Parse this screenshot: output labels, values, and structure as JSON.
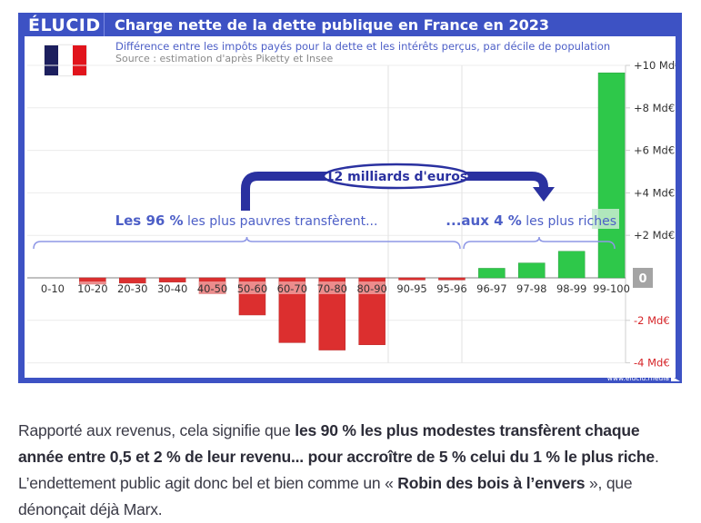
{
  "header": {
    "logo": "ÉLUCID",
    "title": "Charge nette de la dette publique en France en 2023",
    "subtitle": "Différence entre les impôts payés pour la dette et les intérêts perçus, par décile de population",
    "source": "Source : estimation d'après Piketty et Insee",
    "flag_colors": [
      "#1c1f5e",
      "#ffffff",
      "#e1141c"
    ]
  },
  "footer": {
    "url": "www.elucid.media"
  },
  "colors": {
    "frame": "#3d52c4",
    "negative": "#dc2f2f",
    "negative_light": "#f29a9a",
    "positive": "#2ec84a",
    "arrow": "#2a31a0",
    "annotation": "#4d5fc7",
    "brace": "#8e97e6",
    "grid": "#ececec",
    "axis_neg": "#d6262a"
  },
  "chart_data": {
    "type": "bar",
    "title": "Charge nette de la dette publique en France en 2023",
    "subtitle": "Différence entre les impôts payés pour la dette et les intérêts perçus, par décile de population",
    "xlabel": "",
    "ylabel": "",
    "ylim": [
      -4,
      10
    ],
    "yticks": [
      {
        "value": 10,
        "label": "+10 Md€"
      },
      {
        "value": 8,
        "label": "+8 Md€"
      },
      {
        "value": 6,
        "label": "+6 Md€"
      },
      {
        "value": 4,
        "label": "+4 Md€"
      },
      {
        "value": 2,
        "label": "+2 Md€"
      },
      {
        "value": 0,
        "label": "0"
      },
      {
        "value": -2,
        "label": "-2 Md€"
      },
      {
        "value": -4,
        "label": "-4 Md€"
      }
    ],
    "y_axis_side": "right",
    "grid": true,
    "categories": [
      "0-10",
      "10-20",
      "20-30",
      "30-40",
      "40-50",
      "50-60",
      "60-70",
      "70-80",
      "80-90",
      "90-95",
      "95-96",
      "96-97",
      "97-98",
      "98-99",
      "99-100"
    ],
    "values": [
      0,
      -0.3,
      -0.25,
      -0.2,
      -0.75,
      -1.75,
      -3.05,
      -3.4,
      -3.15,
      -0.1,
      -0.1,
      0.45,
      0.7,
      1.25,
      9.65
    ],
    "unit": "Md€",
    "annotations": {
      "transfer_amount": "12 milliards d'euros",
      "left_bold": "Les 96 %",
      "left_rest": " les plus pauvres transfèrent...",
      "right_bold": "...aux 4 %",
      "right_rest": " les plus riches"
    }
  },
  "paragraph": {
    "p1": "Rapporté aux revenus, cela signifie que ",
    "b1": "les 90 % les plus modestes transfèrent chaque année entre 0,5 et 2 % de leur revenu... pour accroître de 5 % celui du 1 % le plus riche",
    "p2": ". L’endettement public agit donc bel et bien comme un « ",
    "b2": "Robin des bois à l’envers",
    "p3": " », que dénonçait déjà Marx."
  }
}
